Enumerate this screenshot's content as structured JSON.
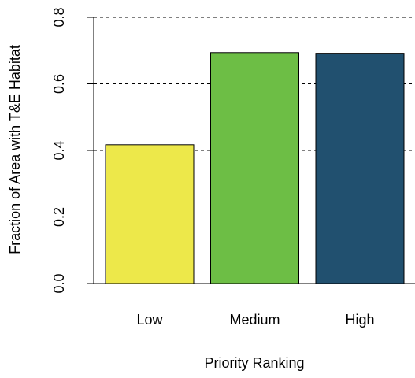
{
  "chart_data": {
    "type": "bar",
    "xlabel": "Priority Ranking",
    "ylabel": "Fraction of Area with T&E Habitat",
    "categories": [
      "Low",
      "Medium",
      "High"
    ],
    "values": [
      0.417,
      0.694,
      0.692
    ],
    "colors": [
      "#ede84a",
      "#6dbe45",
      "#21506f"
    ],
    "ylim": [
      0,
      0.8
    ],
    "yticks": [
      {
        "value": 0,
        "label": "0.0"
      },
      0.2,
      0.4,
      0.6,
      0.8
    ],
    "grid": true
  }
}
